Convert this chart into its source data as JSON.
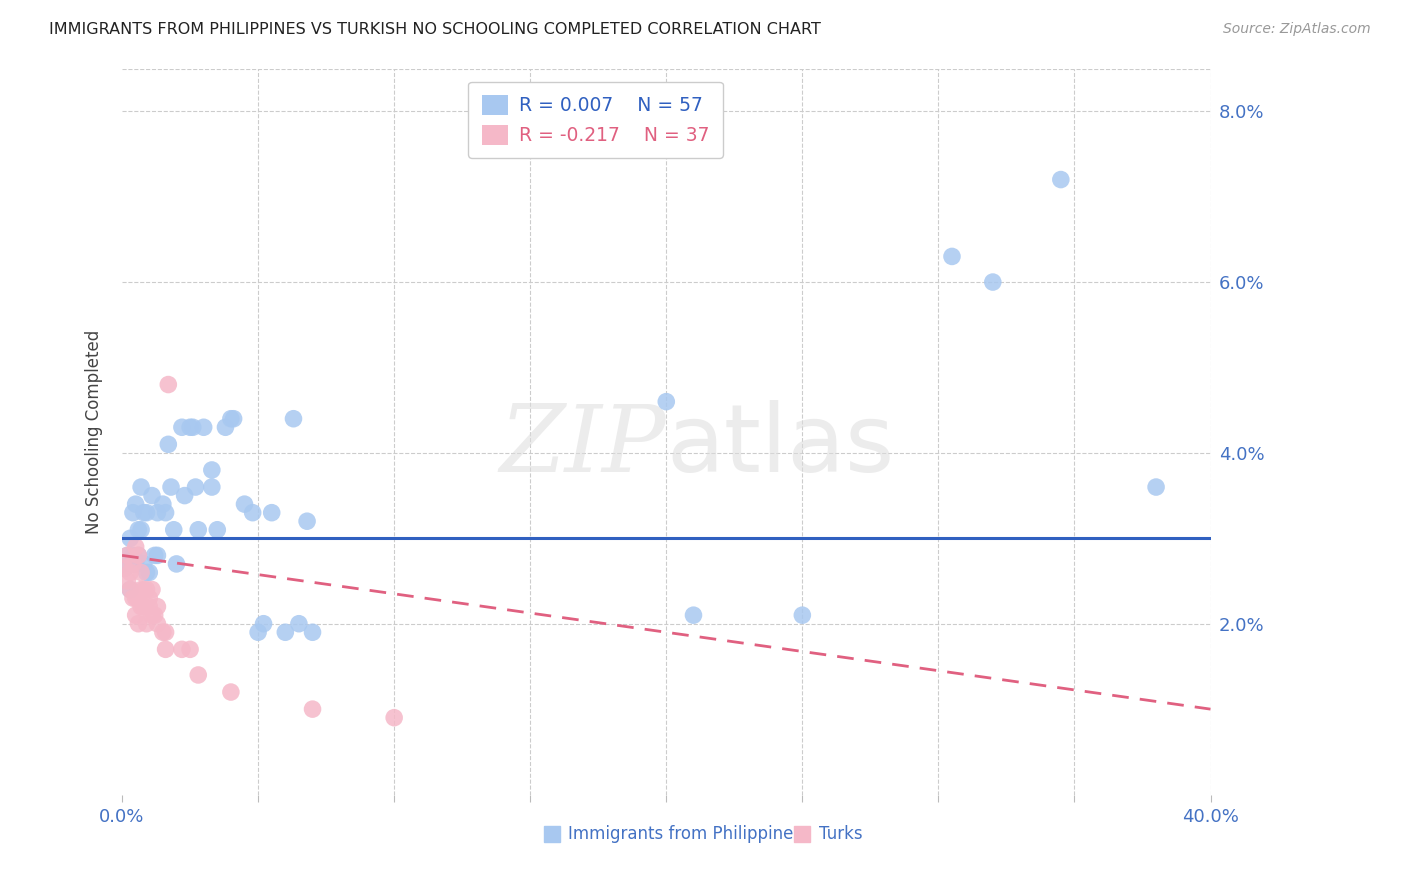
{
  "title": "IMMIGRANTS FROM PHILIPPINES VS TURKISH NO SCHOOLING COMPLETED CORRELATION CHART",
  "source": "Source: ZipAtlas.com",
  "ylabel": "No Schooling Completed",
  "watermark": "ZIPatlas",
  "xlim": [
    0.0,
    0.4
  ],
  "ylim": [
    0.0,
    0.085
  ],
  "xticks": [
    0.0,
    0.05,
    0.1,
    0.15,
    0.2,
    0.25,
    0.3,
    0.35,
    0.4
  ],
  "yticks": [
    0.0,
    0.02,
    0.04,
    0.06,
    0.08
  ],
  "legend_entries": [
    {
      "R": "0.007",
      "N": "57",
      "color": "#a8c8f0"
    },
    {
      "R": "-0.217",
      "N": "37",
      "color": "#f5b8c8"
    }
  ],
  "philippines_color": "#a8c8f0",
  "turks_color": "#f5b8c8",
  "philippines_line_color": "#3060c0",
  "turks_line_color": "#e06080",
  "background_color": "#ffffff",
  "grid_color": "#cccccc",
  "philippines_scatter": [
    [
      0.001,
      0.0265
    ],
    [
      0.002,
      0.028
    ],
    [
      0.003,
      0.03
    ],
    [
      0.003,
      0.024
    ],
    [
      0.004,
      0.028
    ],
    [
      0.004,
      0.033
    ],
    [
      0.005,
      0.034
    ],
    [
      0.005,
      0.027
    ],
    [
      0.006,
      0.031
    ],
    [
      0.006,
      0.028
    ],
    [
      0.007,
      0.036
    ],
    [
      0.007,
      0.031
    ],
    [
      0.008,
      0.033
    ],
    [
      0.008,
      0.027
    ],
    [
      0.009,
      0.033
    ],
    [
      0.009,
      0.026
    ],
    [
      0.01,
      0.026
    ],
    [
      0.011,
      0.035
    ],
    [
      0.012,
      0.028
    ],
    [
      0.013,
      0.033
    ],
    [
      0.013,
      0.028
    ],
    [
      0.015,
      0.034
    ],
    [
      0.016,
      0.033
    ],
    [
      0.017,
      0.041
    ],
    [
      0.018,
      0.036
    ],
    [
      0.019,
      0.031
    ],
    [
      0.02,
      0.027
    ],
    [
      0.022,
      0.043
    ],
    [
      0.023,
      0.035
    ],
    [
      0.025,
      0.043
    ],
    [
      0.026,
      0.043
    ],
    [
      0.027,
      0.036
    ],
    [
      0.028,
      0.031
    ],
    [
      0.03,
      0.043
    ],
    [
      0.033,
      0.036
    ],
    [
      0.033,
      0.038
    ],
    [
      0.035,
      0.031
    ],
    [
      0.038,
      0.043
    ],
    [
      0.04,
      0.044
    ],
    [
      0.041,
      0.044
    ],
    [
      0.045,
      0.034
    ],
    [
      0.048,
      0.033
    ],
    [
      0.05,
      0.019
    ],
    [
      0.052,
      0.02
    ],
    [
      0.055,
      0.033
    ],
    [
      0.06,
      0.019
    ],
    [
      0.063,
      0.044
    ],
    [
      0.065,
      0.02
    ],
    [
      0.068,
      0.032
    ],
    [
      0.07,
      0.019
    ],
    [
      0.2,
      0.046
    ],
    [
      0.21,
      0.021
    ],
    [
      0.25,
      0.021
    ],
    [
      0.305,
      0.063
    ],
    [
      0.32,
      0.06
    ],
    [
      0.345,
      0.072
    ],
    [
      0.38,
      0.036
    ]
  ],
  "turks_scatter": [
    [
      0.001,
      0.0265
    ],
    [
      0.002,
      0.025
    ],
    [
      0.002,
      0.028
    ],
    [
      0.003,
      0.026
    ],
    [
      0.003,
      0.024
    ],
    [
      0.004,
      0.027
    ],
    [
      0.004,
      0.023
    ],
    [
      0.005,
      0.029
    ],
    [
      0.005,
      0.021
    ],
    [
      0.005,
      0.023
    ],
    [
      0.006,
      0.023
    ],
    [
      0.006,
      0.02
    ],
    [
      0.006,
      0.028
    ],
    [
      0.007,
      0.022
    ],
    [
      0.007,
      0.024
    ],
    [
      0.007,
      0.026
    ],
    [
      0.008,
      0.022
    ],
    [
      0.008,
      0.024
    ],
    [
      0.009,
      0.02
    ],
    [
      0.009,
      0.024
    ],
    [
      0.01,
      0.022
    ],
    [
      0.01,
      0.023
    ],
    [
      0.011,
      0.021
    ],
    [
      0.011,
      0.024
    ],
    [
      0.012,
      0.021
    ],
    [
      0.013,
      0.02
    ],
    [
      0.013,
      0.022
    ],
    [
      0.015,
      0.019
    ],
    [
      0.016,
      0.017
    ],
    [
      0.016,
      0.019
    ],
    [
      0.017,
      0.048
    ],
    [
      0.022,
      0.017
    ],
    [
      0.025,
      0.017
    ],
    [
      0.028,
      0.014
    ],
    [
      0.04,
      0.012
    ],
    [
      0.07,
      0.01
    ],
    [
      0.1,
      0.009
    ]
  ],
  "philippines_line_y": 0.03,
  "turks_line": {
    "x_start": 0.0,
    "y_start": 0.028,
    "x_end": 0.4,
    "y_end": 0.01
  }
}
